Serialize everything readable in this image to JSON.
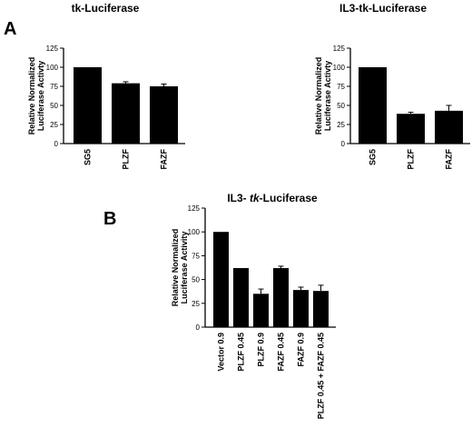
{
  "panel_labels": {
    "a": "A",
    "b": "B"
  },
  "chart_data": [
    {
      "type": "bar",
      "title": "tk-Luciferase",
      "ylabel_line1": "Relative Normalized",
      "ylabel_line2": "Luciferase Activty",
      "xlabel": "",
      "categories": [
        "SG5",
        "PLZF",
        "FAZF"
      ],
      "values": [
        100,
        79,
        75
      ],
      "errors": [
        0,
        2,
        3
      ],
      "ylim": [
        0,
        125
      ],
      "yticks": [
        0,
        25,
        50,
        75,
        100,
        125
      ],
      "grid": false,
      "bar_color": "#000000"
    },
    {
      "type": "bar",
      "title": "IL3-tk-Luciferase",
      "ylabel_line1": "Relative Normalized",
      "ylabel_line2": "Luciferase Activty",
      "xlabel": "",
      "categories": [
        "SG5",
        "PLZF",
        "FAZF"
      ],
      "values": [
        100,
        39,
        43
      ],
      "errors": [
        0,
        2,
        7
      ],
      "ylim": [
        0,
        125
      ],
      "yticks": [
        0,
        25,
        50,
        75,
        100,
        125
      ],
      "grid": false,
      "bar_color": "#000000"
    },
    {
      "type": "bar",
      "title": "IL3- tk-Luciferase",
      "title_parts": [
        "IL3- ",
        "tk",
        "-Luciferase"
      ],
      "ylabel_line1": "Relative Normalized",
      "ylabel_line2": "Luciferase Activity",
      "xlabel": "",
      "categories": [
        "Vector 0.9",
        "PLZF 0.45",
        "PLZF 0.9",
        "FAZF 0.45",
        "FAZF 0.9",
        "PLZF 0.45 + FAZF 0.45"
      ],
      "values": [
        100,
        62,
        35,
        62,
        39,
        38
      ],
      "errors": [
        0,
        0,
        5,
        2,
        3,
        6
      ],
      "ylim": [
        0,
        125
      ],
      "yticks": [
        0,
        25,
        50,
        75,
        100,
        125
      ],
      "grid": false,
      "bar_color": "#000000"
    }
  ]
}
